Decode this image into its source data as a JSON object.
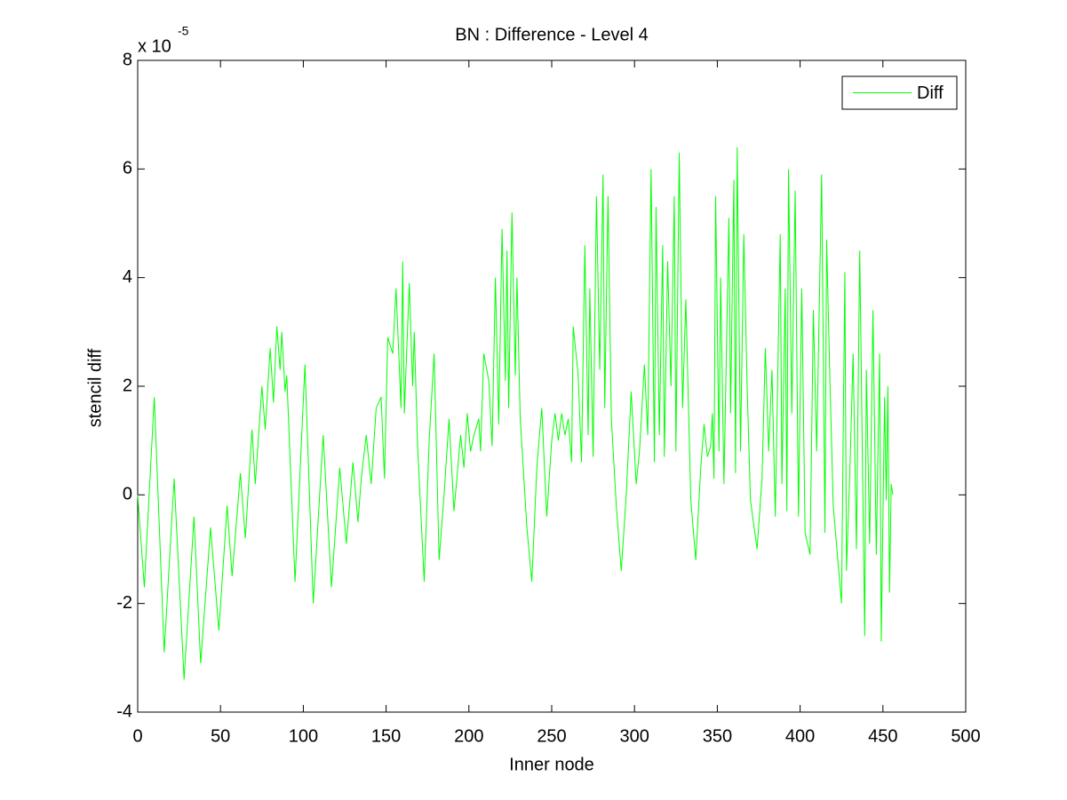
{
  "chart_data": {
    "type": "line",
    "title": "BN : Difference - Level 4",
    "xlabel": "Inner node",
    "ylabel": "stencil diff",
    "y_multiplier": {
      "base": "x 10",
      "exponent": "-5"
    },
    "xlim": [
      0,
      500
    ],
    "xticks": [
      0,
      50,
      100,
      150,
      200,
      250,
      300,
      350,
      400,
      450,
      500
    ],
    "ylim": [
      -4,
      8
    ],
    "yticks": [
      -4,
      -2,
      0,
      2,
      4,
      6,
      8
    ],
    "legend": "upper right",
    "x": [
      0,
      4,
      10,
      16,
      22,
      28,
      34,
      38,
      44,
      49,
      54,
      57,
      62,
      65,
      69,
      71,
      75,
      77,
      80,
      82,
      84,
      86,
      87,
      89,
      90,
      95,
      101,
      106,
      112,
      117,
      122,
      126,
      130,
      133,
      135,
      138,
      141,
      144,
      147,
      149,
      151,
      154,
      156,
      159,
      160,
      161,
      164,
      166,
      167,
      169,
      173,
      176,
      179,
      182,
      185,
      188,
      191,
      195,
      197,
      199,
      201,
      203,
      206,
      207,
      209,
      212,
      214,
      216,
      218,
      220,
      222,
      223,
      224,
      226,
      228,
      229,
      231,
      235,
      238,
      241,
      244,
      247,
      250,
      252,
      254,
      256,
      258,
      260,
      262,
      263,
      266,
      268,
      270,
      272,
      273,
      275,
      277,
      279,
      281,
      282,
      284,
      286,
      289,
      292,
      295,
      298,
      301,
      303,
      306,
      308,
      310,
      312,
      313,
      315,
      317,
      318,
      320,
      322,
      324,
      325,
      327,
      329,
      331,
      334,
      337,
      340,
      342,
      344,
      346,
      347,
      348,
      349,
      351,
      352,
      354,
      357,
      358,
      360,
      361,
      362,
      364,
      366,
      368,
      370,
      374,
      377,
      379,
      381,
      383,
      385,
      388,
      389,
      391,
      392,
      393,
      395,
      397,
      399,
      401,
      403,
      406,
      408,
      410,
      413,
      415,
      416,
      418,
      420,
      425,
      427,
      428,
      430,
      432,
      434,
      436,
      439,
      440,
      442,
      444,
      446,
      448,
      449,
      451,
      452,
      453,
      454,
      455,
      456
    ],
    "series": [
      {
        "name": "Diff",
        "color": "#00ff00",
        "values": [
          0,
          -1.7,
          1.8,
          -2.9,
          0.3,
          -3.4,
          -0.4,
          -3.1,
          -0.6,
          -2.5,
          -0.2,
          -1.5,
          0.4,
          -0.8,
          1.2,
          0.2,
          2.0,
          1.2,
          2.7,
          1.7,
          3.1,
          2.3,
          3.0,
          1.9,
          2.2,
          -1.6,
          2.4,
          -2.0,
          1.1,
          -1.7,
          0.5,
          -0.9,
          0.6,
          -0.5,
          0.3,
          1.1,
          0.2,
          1.6,
          1.8,
          0.3,
          2.9,
          2.6,
          3.8,
          1.6,
          4.3,
          1.5,
          3.9,
          2.0,
          3.0,
          0.9,
          -1.6,
          1.0,
          2.6,
          -1.2,
          0.0,
          1.4,
          -0.3,
          1.1,
          0.5,
          1.5,
          0.8,
          1.1,
          1.4,
          0.8,
          2.6,
          2.1,
          0.9,
          4.0,
          1.3,
          4.9,
          2.1,
          4.5,
          1.6,
          5.2,
          2.2,
          4.0,
          1.4,
          -0.6,
          -1.6,
          0.5,
          1.6,
          -0.4,
          1.0,
          1.5,
          1.0,
          1.5,
          1.1,
          1.4,
          0.6,
          3.1,
          2.2,
          0.6,
          4.6,
          1.1,
          3.8,
          0.7,
          5.5,
          2.3,
          5.9,
          1.6,
          5.5,
          1.4,
          -0.2,
          -1.4,
          0.0,
          1.9,
          0.2,
          0.8,
          2.4,
          1.1,
          6.0,
          0.6,
          5.3,
          1.1,
          4.6,
          0.7,
          4.3,
          2.0,
          5.5,
          0.8,
          6.3,
          1.6,
          3.6,
          -0.1,
          -1.2,
          0.5,
          1.3,
          0.7,
          0.9,
          1.5,
          0.3,
          5.5,
          0.8,
          4.0,
          0.2,
          5.1,
          1.5,
          5.8,
          0.4,
          6.4,
          0.8,
          4.8,
          2.0,
          -0.1,
          -1.0,
          0.3,
          2.7,
          0.8,
          2.3,
          -0.4,
          4.8,
          0.2,
          3.8,
          -0.3,
          6.0,
          1.5,
          5.6,
          -0.4,
          3.8,
          -0.7,
          -1.1,
          3.4,
          0.8,
          5.9,
          -0.7,
          4.7,
          2.1,
          -0.2,
          -2.0,
          4.1,
          -1.4,
          0.4,
          2.6,
          -1.0,
          4.5,
          -2.6,
          2.3,
          -0.9,
          3.4,
          -1.1,
          2.6,
          -2.7,
          1.8,
          -0.1,
          2.0,
          -1.8,
          0.2,
          0.0
        ]
      }
    ]
  }
}
